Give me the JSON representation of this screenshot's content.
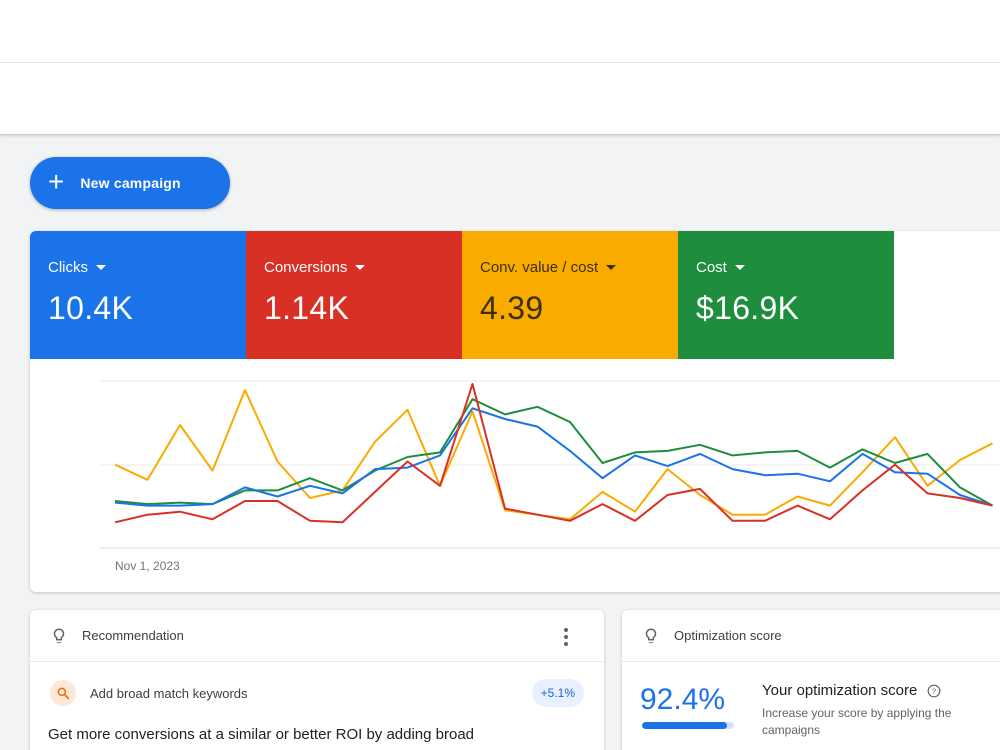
{
  "actions": {
    "new_campaign_label": "New campaign"
  },
  "metrics": [
    {
      "label": "Clicks",
      "value": "10.4K",
      "color": "#1a73e8"
    },
    {
      "label": "Conversions",
      "value": "1.14K",
      "color": "#d93025"
    },
    {
      "label": "Conv. value / cost",
      "value": "4.39",
      "color": "#f9ab00"
    },
    {
      "label": "Cost",
      "value": "$16.9K",
      "color": "#1e8e3e"
    }
  ],
  "chart_data": {
    "type": "line",
    "x_start_label": "Nov 1, 2023",
    "ylim": [
      0,
      100
    ],
    "grid": true,
    "series": [
      {
        "name": "Clicks",
        "color": "#1a73e8",
        "values": [
          22,
          20,
          20,
          21,
          32,
          26,
          33,
          28,
          44,
          45,
          53,
          84,
          77,
          72,
          56,
          38,
          53,
          46,
          54,
          44,
          40,
          41,
          36,
          54,
          42,
          41,
          27,
          20
        ]
      },
      {
        "name": "Conversions",
        "color": "#d93025",
        "values": [
          9,
          14,
          16,
          11,
          23,
          23,
          10,
          9,
          29,
          49,
          33,
          100,
          18,
          14,
          10,
          21,
          10,
          27,
          31,
          10,
          10,
          20,
          11,
          30,
          47,
          28,
          25,
          20
        ]
      },
      {
        "name": "Conv. value / cost",
        "color": "#f9ab00",
        "values": [
          47,
          37,
          73,
          43,
          96,
          49,
          25,
          30,
          62,
          83,
          33,
          82,
          17,
          14,
          11,
          29,
          16,
          44,
          27,
          14,
          14,
          26,
          20,
          42,
          65,
          33,
          50,
          61
        ]
      },
      {
        "name": "Cost",
        "color": "#1e8e3e",
        "values": [
          23,
          21,
          22,
          21,
          30,
          30,
          38,
          30,
          43,
          52,
          55,
          90,
          80,
          85,
          75,
          48,
          55,
          56,
          60,
          53,
          55,
          56,
          45,
          57,
          48,
          54,
          32,
          20
        ]
      }
    ]
  },
  "recommendation": {
    "header": "Recommendation",
    "title": "Add broad match keywords",
    "uplift": "+5.1%",
    "description": "Get more conversions at a similar or better ROI by adding broad"
  },
  "optimization": {
    "header": "Optimization score",
    "score": "92.4%",
    "score_fraction": 0.924,
    "title": "Your optimization score",
    "subtitle": "Increase your score by applying the campaigns"
  }
}
